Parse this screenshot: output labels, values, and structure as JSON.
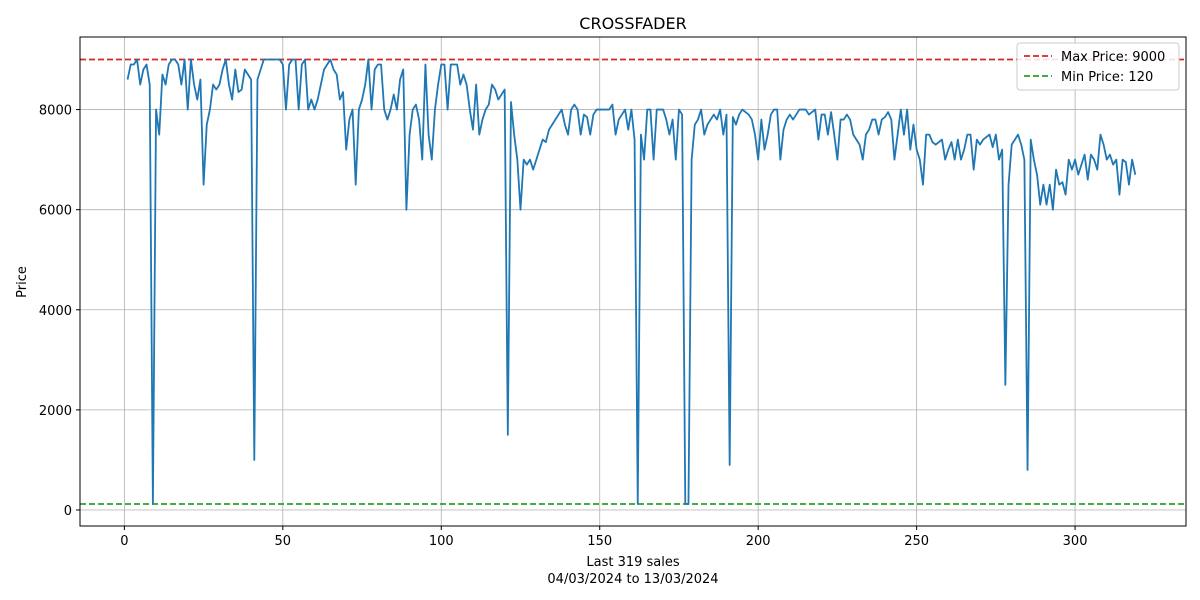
{
  "chart_data": {
    "type": "line",
    "title": "CROSSFADER",
    "xlabel": "Last 319 sales",
    "xlabel_sub": "04/03/2024 to 13/03/2024",
    "ylabel": "Price",
    "xlim": [
      -14,
      335
    ],
    "ylim": [
      -320,
      9450
    ],
    "xticks": [
      0,
      50,
      100,
      150,
      200,
      250,
      300
    ],
    "yticks": [
      0,
      2000,
      4000,
      6000,
      8000
    ],
    "grid": true,
    "legend_position": "top-right",
    "line_color": "#1f77b4",
    "reference_lines": [
      {
        "label": "Max Price: 9000",
        "value": 9000,
        "color": "#d62728"
      },
      {
        "label": "Min Price: 120",
        "value": 120,
        "color": "#2ca02c"
      }
    ],
    "series": [
      {
        "values": [
          8600,
          8900,
          8900,
          9000,
          8500,
          8800,
          8900,
          8500,
          120,
          8000,
          7500,
          8700,
          8500,
          8900,
          9000,
          9000,
          8900,
          8500,
          9000,
          8000,
          9000,
          8500,
          8200,
          8600,
          6500,
          7700,
          8000,
          8500,
          8400,
          8500,
          8800,
          9000,
          8500,
          8200,
          8800,
          8350,
          8400,
          8800,
          8700,
          8600,
          1000,
          8600,
          8800,
          9000,
          9000,
          9000,
          9000,
          9000,
          9000,
          8900,
          8000,
          8900,
          9000,
          9000,
          8000,
          8900,
          9000,
          8000,
          8200,
          8000,
          8200,
          8500,
          8800,
          8900,
          9000,
          8800,
          8700,
          8200,
          8350,
          7200,
          7800,
          8000,
          6500,
          8000,
          8200,
          8500,
          9000,
          8000,
          8800,
          8900,
          8900,
          8000,
          7800,
          8000,
          8300,
          8000,
          8600,
          8800,
          6000,
          7500,
          8000,
          8100,
          7800,
          7000,
          8900,
          7500,
          7000,
          8000,
          8500,
          8900,
          8900,
          8000,
          8900,
          8900,
          8900,
          8500,
          8700,
          8500,
          8000,
          7600,
          8500,
          7500,
          7800,
          8000,
          8100,
          8500,
          8400,
          8200,
          8300,
          8400,
          1500,
          8150,
          7500,
          7000,
          6000,
          7000,
          6900,
          7000,
          6800,
          7000,
          7200,
          7400,
          7350,
          7600,
          7700,
          7800,
          7900,
          8000,
          7700,
          7500,
          8000,
          8100,
          8000,
          7500,
          7900,
          7850,
          7500,
          7900,
          8000,
          8000,
          8000,
          8000,
          8000,
          8100,
          7500,
          7800,
          7900,
          8000,
          7600,
          8000,
          7400,
          120,
          7500,
          7000,
          8000,
          8000,
          7000,
          8000,
          8000,
          8000,
          7800,
          7500,
          7800,
          7000,
          8000,
          7900,
          120,
          120,
          7000,
          7700,
          7800,
          8000,
          7500,
          7700,
          7800,
          7900,
          7800,
          8000,
          7500,
          7900,
          900,
          7850,
          7700,
          7900,
          8000,
          7950,
          7900,
          7800,
          7500,
          7000,
          7800,
          7200,
          7500,
          7900,
          8000,
          8000,
          7000,
          7600,
          7800,
          7900,
          7800,
          7900,
          8000,
          8000,
          8000,
          7900,
          7950,
          8000,
          7400,
          7900,
          7900,
          7500,
          7950,
          7500,
          7000,
          7800,
          7800,
          7900,
          7800,
          7500,
          7400,
          7300,
          7000,
          7500,
          7600,
          7800,
          7800,
          7500,
          7800,
          7850,
          7950,
          7800,
          7000,
          7500,
          8000,
          7500,
          8000,
          7200,
          7700,
          7200,
          7000,
          6500,
          7500,
          7500,
          7350,
          7300,
          7350,
          7400,
          7000,
          7200,
          7350,
          7000,
          7400,
          7000,
          7200,
          7500,
          7500,
          6800,
          7400,
          7300,
          7400,
          7450,
          7500,
          7250,
          7500,
          7000,
          7200,
          2500,
          6500,
          7300,
          7400,
          7500,
          7300,
          7000,
          800,
          7400,
          7000,
          6700,
          6100,
          6500,
          6100,
          6500,
          6000,
          6800,
          6500,
          6550,
          6300,
          7000,
          6800,
          7000,
          6700,
          6900,
          7100,
          6600,
          7100,
          7000,
          6800,
          7500,
          7300,
          7000,
          7100,
          6900,
          7000,
          6300,
          7000,
          6950,
          6500,
          7000,
          6700
        ]
      }
    ]
  }
}
